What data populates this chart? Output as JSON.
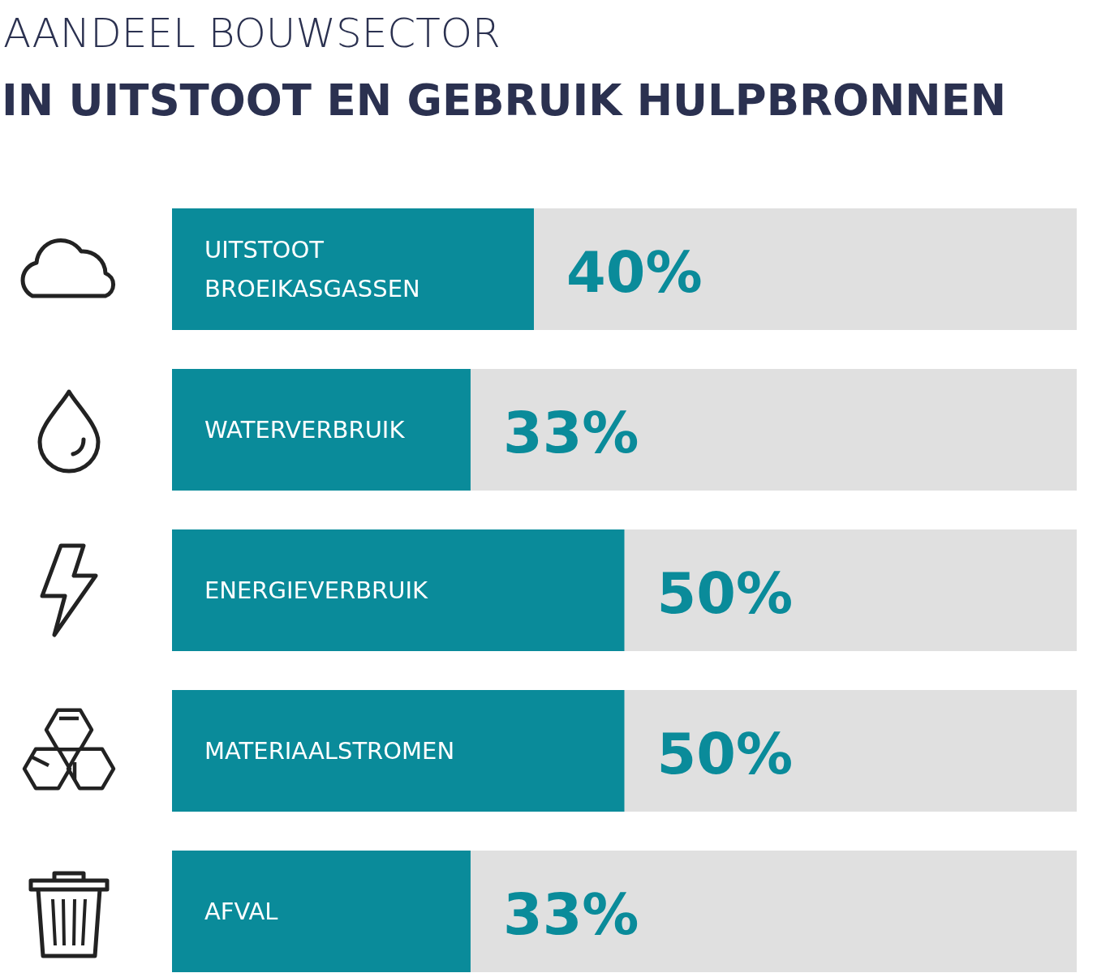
{
  "chart_data": {
    "type": "bar",
    "orientation": "horizontal",
    "title": "AANDEEL BOUWSECTOR",
    "subtitle": "IN UITSTOOT EN GEBRUIK HULPBRONNEN",
    "categories": [
      "UITSTOOT BROEIKASGASSEN",
      "WATERVERBRUIK",
      "ENERGIEVERBRUIK",
      "MATERIAALSTROMEN",
      "AFVAL"
    ],
    "values": [
      40,
      33,
      50,
      50,
      33
    ],
    "value_labels": [
      "40%",
      "33%",
      "50%",
      "50%",
      "33%"
    ],
    "color": "#0a8b9a",
    "xlim": [
      0,
      100
    ]
  }
}
